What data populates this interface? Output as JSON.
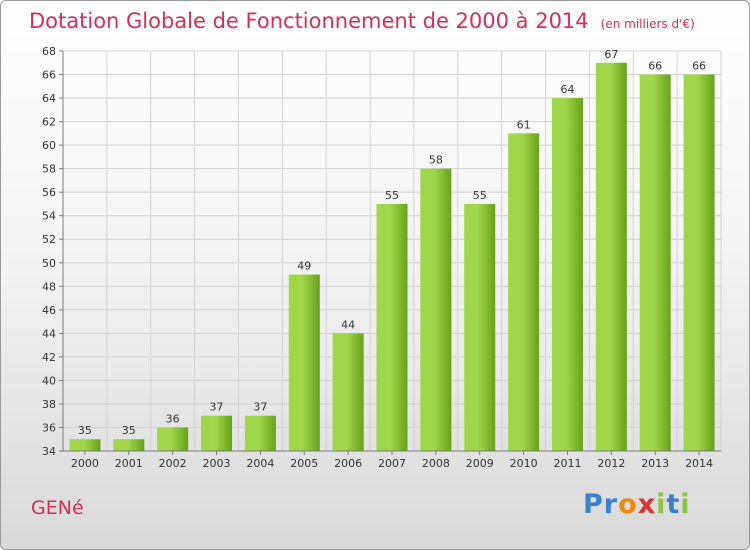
{
  "title": "Dotation Globale de Fonctionnement de 2000 à 2014",
  "unit_note": "(en milliers d'€)",
  "commune": "GENé",
  "logo": {
    "text": "Proxiti",
    "letters": [
      {
        "ch": "P",
        "color": "#3a7fd0"
      },
      {
        "ch": "r",
        "color": "#3a7fd0"
      },
      {
        "ch": "o",
        "color": "#f08a10"
      },
      {
        "ch": "x",
        "color": "#e03030"
      },
      {
        "ch": "i",
        "color": "#8cc63f"
      },
      {
        "ch": "t",
        "color": "#3a7fd0"
      },
      {
        "ch": "i",
        "color": "#8cc63f"
      }
    ]
  },
  "colors": {
    "title": "#d0305a",
    "bar_light": "#9fd64a",
    "bar_dark": "#68a21a",
    "grid": "#d2d2d2",
    "axis": "#7a7a7a",
    "text": "#333333"
  },
  "chart_data": {
    "type": "bar",
    "categories": [
      "2000",
      "2001",
      "2002",
      "2003",
      "2004",
      "2005",
      "2006",
      "2007",
      "2008",
      "2009",
      "2010",
      "2011",
      "2012",
      "2013",
      "2014"
    ],
    "values": [
      35,
      35,
      36,
      37,
      37,
      49,
      44,
      55,
      58,
      55,
      61,
      64,
      67,
      66,
      66
    ],
    "ylim": [
      34,
      68
    ],
    "yticks": [
      34,
      36,
      38,
      40,
      42,
      44,
      46,
      48,
      50,
      52,
      54,
      56,
      58,
      60,
      62,
      64,
      66,
      68
    ],
    "grid": true,
    "data_labels": true,
    "xlabel": "",
    "ylabel": ""
  }
}
